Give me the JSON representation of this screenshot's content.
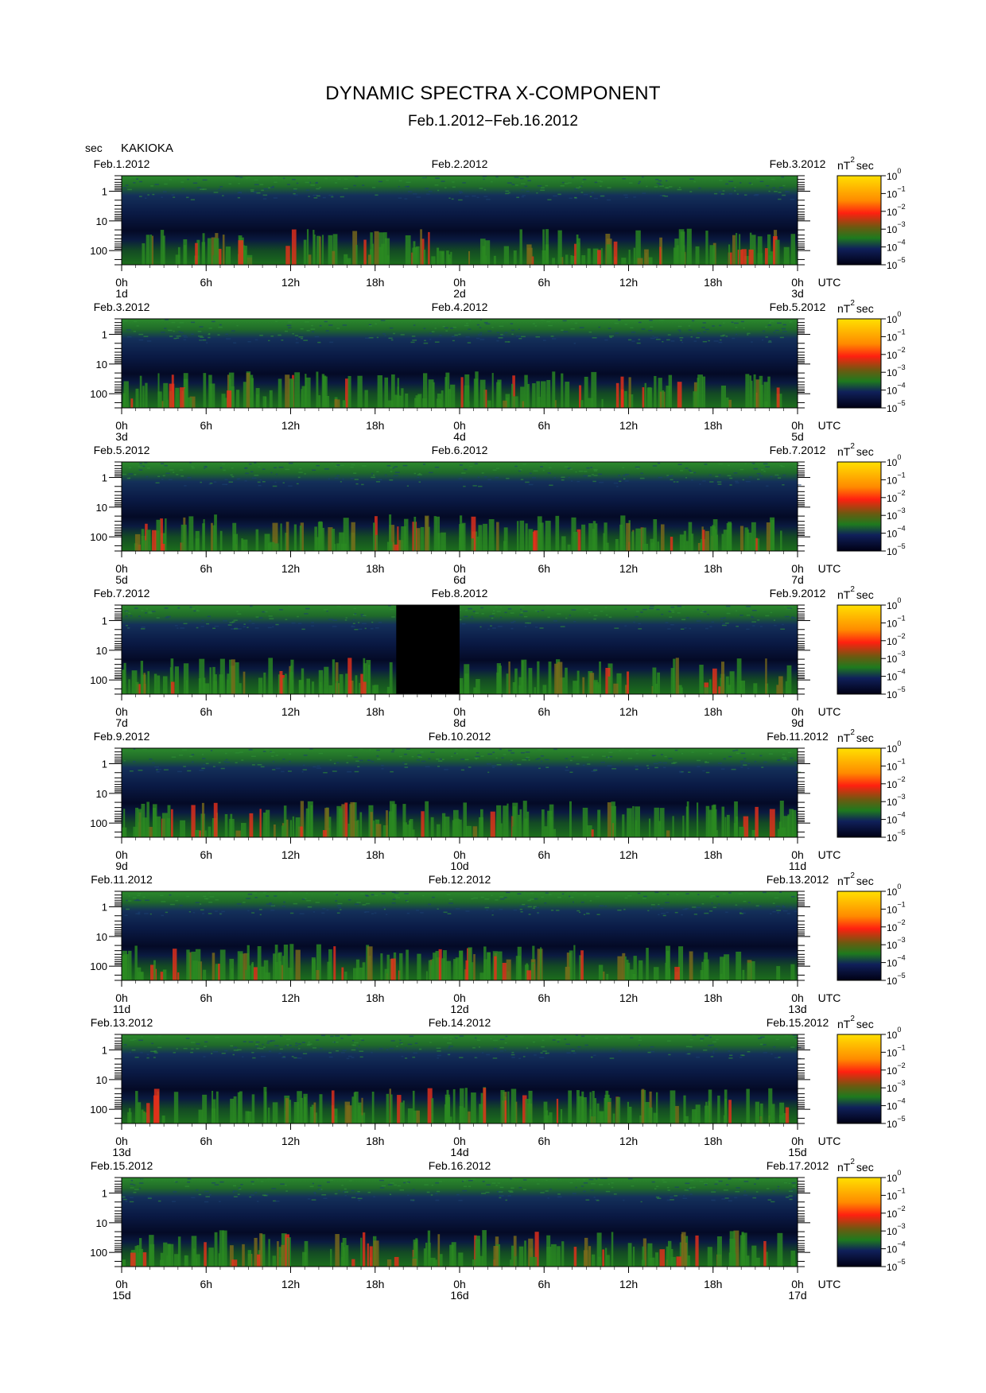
{
  "title": "DYNAMIC SPECTRA X-COMPONENT",
  "subtitle": "Feb.1.2012−Feb.16.2012",
  "yunit": "sec",
  "station": "KAKIOKA",
  "colors": {
    "low": "#000014",
    "mid_low": "#10205a",
    "mid": "#1e7a1e",
    "mid_high": "#ff2010",
    "high": "#ffe000"
  },
  "chart_data": {
    "type": "heatmap",
    "y_axis": {
      "scale": "log",
      "reversed": true,
      "range": [
        0.3,
        300
      ],
      "tick_labels": [
        "1",
        "10",
        "100"
      ],
      "tick_values": [
        1,
        10,
        100
      ]
    },
    "x_tick_labels": [
      "0h",
      "6h",
      "12h",
      "18h",
      "0h",
      "6h",
      "12h",
      "18h",
      "0h"
    ],
    "x_tick_hours": [
      0,
      6,
      12,
      18,
      24,
      30,
      36,
      42,
      48
    ],
    "time_zone": "UTC",
    "colorbar": {
      "unit_base": "nT",
      "unit_exp": "2",
      "unit_suffix": "sec",
      "labels": [
        {
          "base": "10",
          "exp": "0"
        },
        {
          "base": "10",
          "exp": "−1"
        },
        {
          "base": "10",
          "exp": "−2"
        },
        {
          "base": "10",
          "exp": "−3"
        },
        {
          "base": "10",
          "exp": "−4"
        },
        {
          "base": "10",
          "exp": "−5"
        }
      ],
      "values": [
        1,
        0.1,
        0.01,
        0.001,
        0.0001,
        1e-05
      ]
    },
    "panels": [
      {
        "date_left": "Feb.1.2012",
        "date_mid": "Feb.2.2012",
        "date_right": "Feb.3.2012",
        "day_left": "1d",
        "day_mid": "2d",
        "day_right": "3d",
        "data_gap_hours": []
      },
      {
        "date_left": "Feb.3.2012",
        "date_mid": "Feb.4.2012",
        "date_right": "Feb.5.2012",
        "day_left": "3d",
        "day_mid": "4d",
        "day_right": "5d",
        "data_gap_hours": []
      },
      {
        "date_left": "Feb.5.2012",
        "date_mid": "Feb.6.2012",
        "date_right": "Feb.7.2012",
        "day_left": "5d",
        "day_mid": "6d",
        "day_right": "7d",
        "data_gap_hours": []
      },
      {
        "date_left": "Feb.7.2012",
        "date_mid": "Feb.8.2012",
        "date_right": "Feb.9.2012",
        "day_left": "7d",
        "day_mid": "8d",
        "day_right": "9d",
        "data_gap_hours": [
          19.5,
          24
        ]
      },
      {
        "date_left": "Feb.9.2012",
        "date_mid": "Feb.10.2012",
        "date_right": "Feb.11.2012",
        "day_left": "9d",
        "day_mid": "10d",
        "day_right": "11d",
        "data_gap_hours": []
      },
      {
        "date_left": "Feb.11.2012",
        "date_mid": "Feb.12.2012",
        "date_right": "Feb.13.2012",
        "day_left": "11d",
        "day_mid": "12d",
        "day_right": "13d",
        "data_gap_hours": []
      },
      {
        "date_left": "Feb.13.2012",
        "date_mid": "Feb.14.2012",
        "date_right": "Feb.15.2012",
        "day_left": "13d",
        "day_mid": "14d",
        "day_right": "15d",
        "data_gap_hours": []
      },
      {
        "date_left": "Feb.15.2012",
        "date_mid": "Feb.16.2012",
        "date_right": "Feb.17.2012",
        "day_left": "15d",
        "day_mid": "16d",
        "day_right": "17d",
        "data_gap_hours": []
      }
    ]
  }
}
